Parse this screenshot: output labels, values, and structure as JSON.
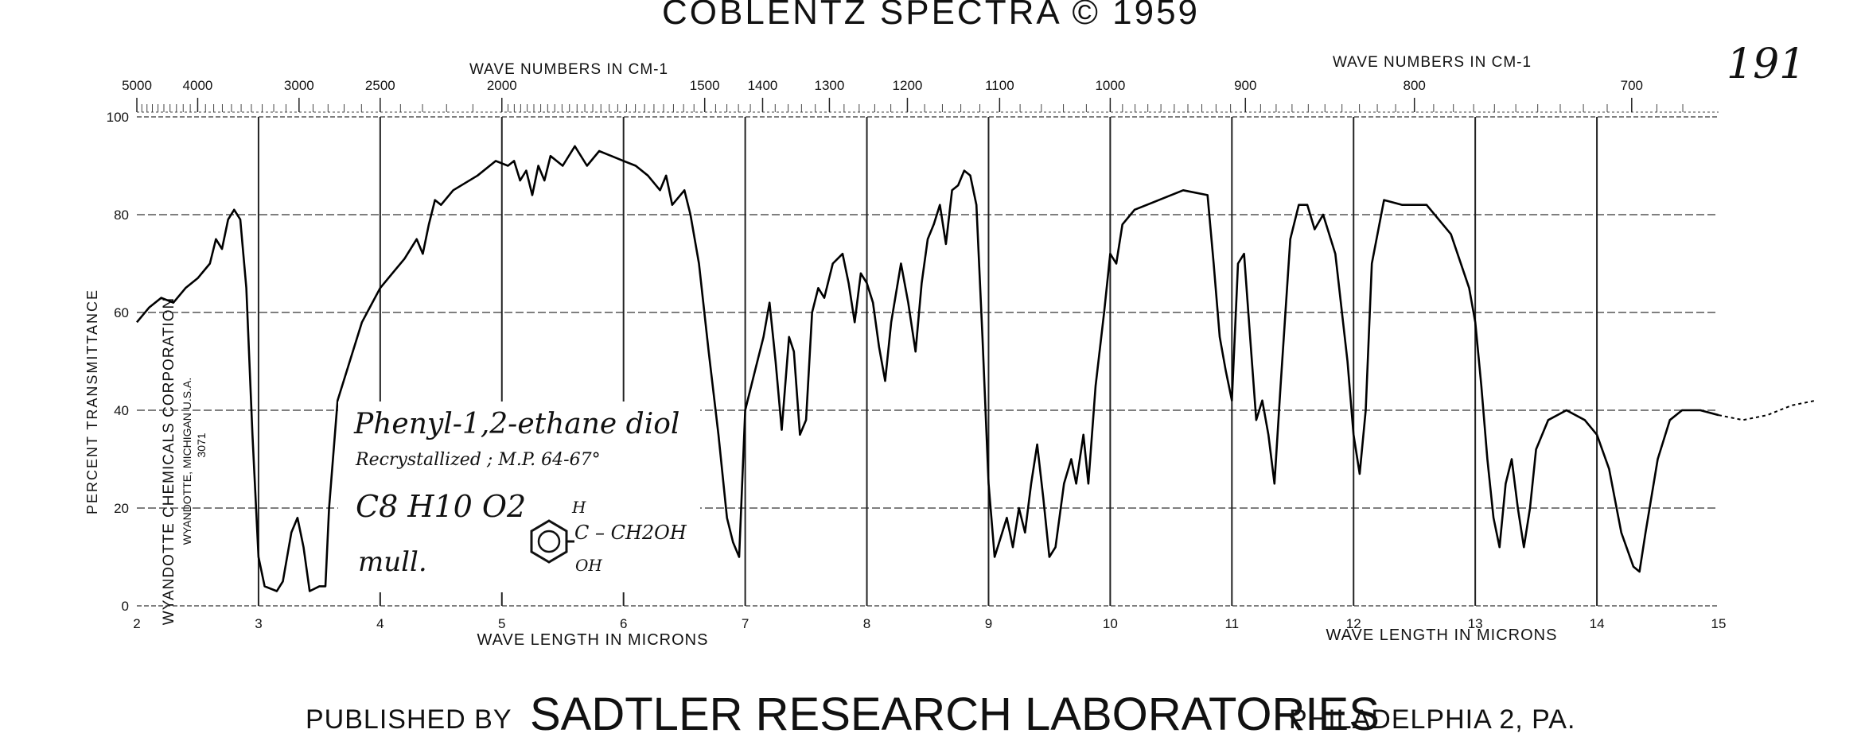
{
  "header": {
    "title": "COBLENTZ SPECTRA © 1959",
    "page_mark": "191"
  },
  "footer": {
    "prefix": "PUBLISHED BY",
    "publisher": "SADTLER RESEARCH LABORATORIES",
    "location": "PHILADELPHIA 2, PA."
  },
  "side_text": {
    "corp": "WYANDOTTE CHEMICALS CORPORATION",
    "city": "WYANDOTTE, MICHIGAN U.S.A.",
    "code": "3071"
  },
  "annotation": {
    "line1": "Phenyl-1,2-ethane diol",
    "line2": "Recrystallized ; M.P. 64-67°",
    "line3": "C8 H10 O2",
    "line4": "mull.",
    "struct_h": "H",
    "struct_c": "C – CH2OH",
    "struct_oh": "OH"
  },
  "chart_data": {
    "type": "line",
    "title": "COBLENTZ SPECTRA © 1959",
    "xlabel": "WAVE LENGTH IN MICRONS",
    "x2label": "WAVE NUMBERS IN CM-1",
    "ylabel": "PERCENT TRANSMITTANCE",
    "xlim": [
      2,
      15
    ],
    "ylim": [
      0,
      100
    ],
    "grid": true,
    "x_ticks": [
      "2",
      "3",
      "4",
      "5",
      "6",
      "7",
      "8",
      "9",
      "10",
      "11",
      "12",
      "13",
      "14",
      "15"
    ],
    "y_ticks": [
      "0",
      "20",
      "40",
      "60",
      "80",
      "100"
    ],
    "top_ticks": [
      {
        "label": "5000",
        "x": 2.0
      },
      {
        "label": "4000",
        "x": 2.5
      },
      {
        "label": "3000",
        "x": 3.333
      },
      {
        "label": "2500",
        "x": 4.0
      },
      {
        "label": "2000",
        "x": 5.0
      },
      {
        "label": "1500",
        "x": 6.667
      },
      {
        "label": "1400",
        "x": 7.143
      },
      {
        "label": "1300",
        "x": 7.692
      },
      {
        "label": "1200",
        "x": 8.333
      },
      {
        "label": "1100",
        "x": 9.091
      },
      {
        "label": "1000",
        "x": 10.0
      },
      {
        "label": "900",
        "x": 11.111
      },
      {
        "label": "800",
        "x": 12.5
      },
      {
        "label": "700",
        "x": 14.286
      }
    ],
    "series": [
      {
        "points": [
          [
            2.0,
            58
          ],
          [
            2.1,
            61
          ],
          [
            2.2,
            63
          ],
          [
            2.3,
            62
          ],
          [
            2.4,
            65
          ],
          [
            2.5,
            67
          ],
          [
            2.6,
            70
          ],
          [
            2.65,
            75
          ],
          [
            2.7,
            73
          ],
          [
            2.75,
            79
          ],
          [
            2.8,
            81
          ],
          [
            2.85,
            79
          ],
          [
            2.9,
            65
          ],
          [
            2.95,
            35
          ],
          [
            3.0,
            10
          ],
          [
            3.05,
            4
          ],
          [
            3.15,
            3
          ],
          [
            3.2,
            5
          ],
          [
            3.27,
            15
          ],
          [
            3.32,
            18
          ],
          [
            3.37,
            12
          ],
          [
            3.42,
            3
          ],
          [
            3.5,
            4
          ],
          [
            3.55,
            4
          ],
          [
            3.58,
            20
          ],
          [
            3.65,
            42
          ],
          [
            3.75,
            50
          ],
          [
            3.85,
            58
          ],
          [
            4.0,
            65
          ],
          [
            4.1,
            68
          ],
          [
            4.2,
            71
          ],
          [
            4.3,
            75
          ],
          [
            4.35,
            72
          ],
          [
            4.4,
            78
          ],
          [
            4.45,
            83
          ],
          [
            4.5,
            82
          ],
          [
            4.6,
            85
          ],
          [
            4.8,
            88
          ],
          [
            4.95,
            91
          ],
          [
            5.05,
            90
          ],
          [
            5.1,
            91
          ],
          [
            5.15,
            87
          ],
          [
            5.2,
            89
          ],
          [
            5.25,
            84
          ],
          [
            5.3,
            90
          ],
          [
            5.35,
            87
          ],
          [
            5.4,
            92
          ],
          [
            5.5,
            90
          ],
          [
            5.6,
            94
          ],
          [
            5.7,
            90
          ],
          [
            5.8,
            93
          ],
          [
            5.9,
            92
          ],
          [
            6.0,
            91
          ],
          [
            6.1,
            90
          ],
          [
            6.2,
            88
          ],
          [
            6.3,
            85
          ],
          [
            6.35,
            88
          ],
          [
            6.4,
            82
          ],
          [
            6.5,
            85
          ],
          [
            6.55,
            80
          ],
          [
            6.62,
            70
          ],
          [
            6.7,
            52
          ],
          [
            6.78,
            35
          ],
          [
            6.85,
            18
          ],
          [
            6.9,
            13
          ],
          [
            6.95,
            10
          ],
          [
            7.0,
            40
          ],
          [
            7.08,
            48
          ],
          [
            7.15,
            55
          ],
          [
            7.2,
            62
          ],
          [
            7.25,
            50
          ],
          [
            7.3,
            36
          ],
          [
            7.36,
            55
          ],
          [
            7.4,
            52
          ],
          [
            7.45,
            35
          ],
          [
            7.5,
            38
          ],
          [
            7.55,
            60
          ],
          [
            7.6,
            65
          ],
          [
            7.65,
            63
          ],
          [
            7.72,
            70
          ],
          [
            7.8,
            72
          ],
          [
            7.85,
            66
          ],
          [
            7.9,
            58
          ],
          [
            7.95,
            68
          ],
          [
            8.0,
            66
          ],
          [
            8.05,
            62
          ],
          [
            8.1,
            53
          ],
          [
            8.15,
            46
          ],
          [
            8.2,
            58
          ],
          [
            8.28,
            70
          ],
          [
            8.34,
            62
          ],
          [
            8.4,
            52
          ],
          [
            8.45,
            66
          ],
          [
            8.5,
            75
          ],
          [
            8.55,
            78
          ],
          [
            8.6,
            82
          ],
          [
            8.65,
            74
          ],
          [
            8.7,
            85
          ],
          [
            8.75,
            86
          ],
          [
            8.8,
            89
          ],
          [
            8.85,
            88
          ],
          [
            8.9,
            82
          ],
          [
            8.95,
            55
          ],
          [
            9.0,
            25
          ],
          [
            9.05,
            10
          ],
          [
            9.1,
            14
          ],
          [
            9.15,
            18
          ],
          [
            9.2,
            12
          ],
          [
            9.25,
            20
          ],
          [
            9.3,
            15
          ],
          [
            9.35,
            25
          ],
          [
            9.4,
            33
          ],
          [
            9.45,
            22
          ],
          [
            9.5,
            10
          ],
          [
            9.55,
            12
          ],
          [
            9.62,
            25
          ],
          [
            9.68,
            30
          ],
          [
            9.72,
            25
          ],
          [
            9.78,
            35
          ],
          [
            9.82,
            25
          ],
          [
            9.88,
            45
          ],
          [
            9.95,
            60
          ],
          [
            10.0,
            72
          ],
          [
            10.05,
            70
          ],
          [
            10.1,
            78
          ],
          [
            10.2,
            81
          ],
          [
            10.4,
            83
          ],
          [
            10.6,
            85
          ],
          [
            10.8,
            84
          ],
          [
            10.85,
            70
          ],
          [
            10.9,
            55
          ],
          [
            10.95,
            48
          ],
          [
            11.0,
            42
          ],
          [
            11.05,
            70
          ],
          [
            11.1,
            72
          ],
          [
            11.15,
            55
          ],
          [
            11.2,
            38
          ],
          [
            11.25,
            42
          ],
          [
            11.3,
            35
          ],
          [
            11.35,
            25
          ],
          [
            11.4,
            45
          ],
          [
            11.48,
            75
          ],
          [
            11.55,
            82
          ],
          [
            11.62,
            82
          ],
          [
            11.68,
            77
          ],
          [
            11.75,
            80
          ],
          [
            11.85,
            72
          ],
          [
            11.95,
            50
          ],
          [
            12.0,
            35
          ],
          [
            12.05,
            27
          ],
          [
            12.1,
            40
          ],
          [
            12.15,
            70
          ],
          [
            12.25,
            83
          ],
          [
            12.4,
            82
          ],
          [
            12.6,
            82
          ],
          [
            12.8,
            76
          ],
          [
            12.95,
            65
          ],
          [
            13.0,
            58
          ],
          [
            13.05,
            45
          ],
          [
            13.1,
            30
          ],
          [
            13.15,
            18
          ],
          [
            13.2,
            12
          ],
          [
            13.25,
            25
          ],
          [
            13.3,
            30
          ],
          [
            13.35,
            20
          ],
          [
            13.4,
            12
          ],
          [
            13.45,
            20
          ],
          [
            13.5,
            32
          ],
          [
            13.6,
            38
          ],
          [
            13.75,
            40
          ],
          [
            13.9,
            38
          ],
          [
            14.0,
            35
          ],
          [
            14.1,
            28
          ],
          [
            14.2,
            15
          ],
          [
            14.3,
            8
          ],
          [
            14.35,
            7
          ],
          [
            14.4,
            15
          ],
          [
            14.5,
            30
          ],
          [
            14.6,
            38
          ],
          [
            14.7,
            40
          ],
          [
            14.85,
            40
          ],
          [
            15.0,
            39
          ],
          [
            15.2,
            38
          ],
          [
            15.4,
            39
          ],
          [
            15.6,
            41
          ],
          [
            15.8,
            42
          ]
        ]
      }
    ]
  }
}
